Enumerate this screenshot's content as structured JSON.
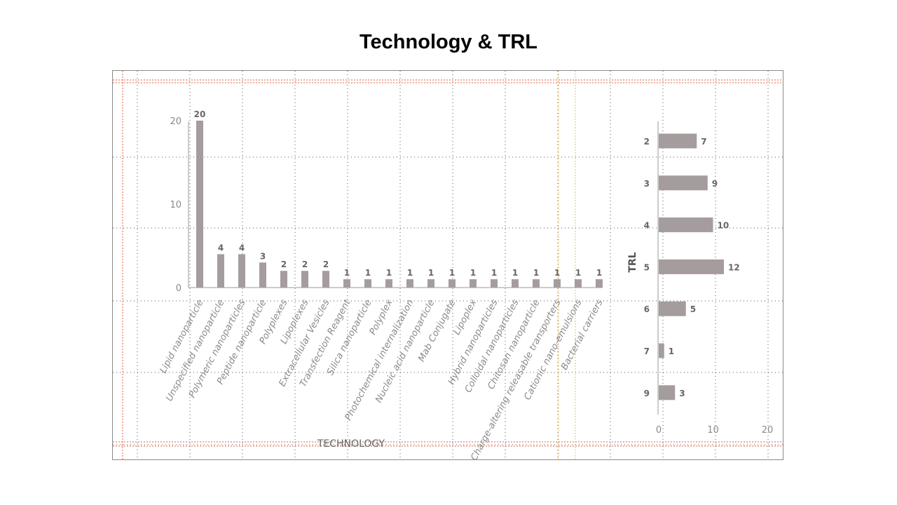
{
  "title": "Technology & TRL",
  "colors": {
    "bar": "#a59c9e",
    "axis": "#9a9a9a",
    "grid": "#555555",
    "guide_red": "#e06040",
    "guide_yellow": "#e8c060"
  },
  "chart_data": [
    {
      "type": "bar",
      "orientation": "vertical",
      "xlabel": "TECHNOLOGY",
      "ylabel": "",
      "ylim": [
        0,
        20
      ],
      "yticks": [
        0,
        10,
        20
      ],
      "grid": true,
      "categories": [
        "Lipid nanoparticle",
        "Unspecified nanoparticle",
        "Polymeric nanoparticles",
        "Peptide nanoparticle",
        "Polyplexes",
        "Lipoplexes",
        "Extracellular Vesicles",
        "Transfection Reagent",
        "Silica nanoparticle",
        "Polyplex",
        "Photochemical internalization",
        "Nucleic acid nanoparticle",
        "Mab Conjugate",
        "Lipoplex",
        "Hybrid nanoparticles",
        "Colloidal nanoparticles",
        "Chitosan nanoparticle",
        "Charge-altering releasable transporters",
        "Cationic nano-emulsions",
        "Bacterial carriers"
      ],
      "values": [
        20,
        4,
        4,
        3,
        2,
        2,
        2,
        1,
        1,
        1,
        1,
        1,
        1,
        1,
        1,
        1,
        1,
        1,
        1,
        1
      ]
    },
    {
      "type": "bar",
      "orientation": "horizontal",
      "xlabel": "",
      "ylabel": "TRL",
      "xlim": [
        0,
        20
      ],
      "xticks": [
        0,
        10,
        20
      ],
      "grid": true,
      "categories": [
        "2",
        "3",
        "4",
        "5",
        "6",
        "7",
        "9"
      ],
      "values": [
        7,
        9,
        10,
        12,
        5,
        1,
        3
      ]
    }
  ]
}
